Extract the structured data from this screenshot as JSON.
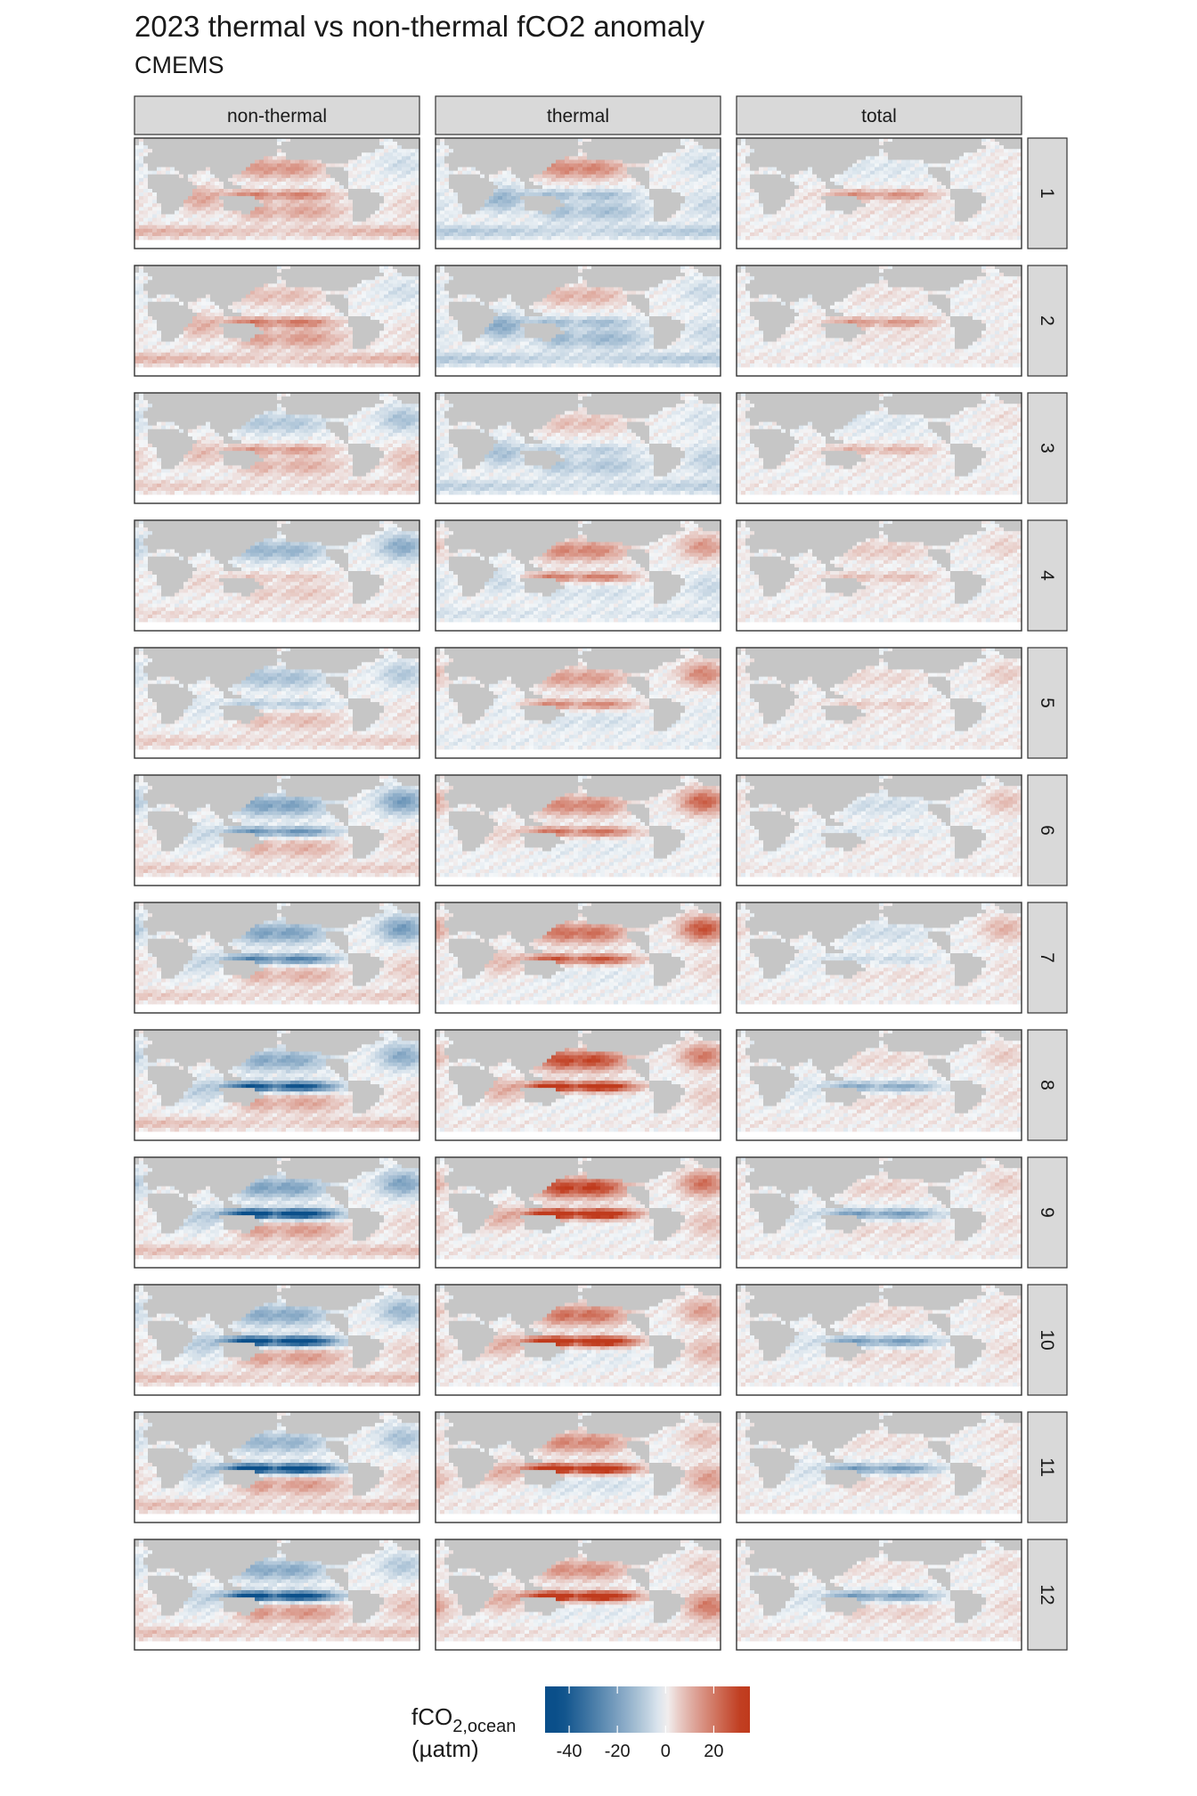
{
  "title": "2023 thermal vs non-thermal fCO2 anomaly",
  "subtitle": "CMEMS",
  "chart_data": {
    "type": "heatmap",
    "kind": "faceted global maps",
    "columns": [
      "non-thermal",
      "thermal",
      "total"
    ],
    "rows": [
      "1",
      "2",
      "3",
      "4",
      "5",
      "6",
      "7",
      "8",
      "9",
      "10",
      "11",
      "12"
    ],
    "legend": {
      "title_main": "fCO",
      "title_sub": "2,ocean",
      "title_unit": "(µatm)",
      "ticks": [
        {
          "value": -40,
          "label": "-40"
        },
        {
          "value": -20,
          "label": "-20"
        },
        {
          "value": 0,
          "label": "0"
        },
        {
          "value": 20,
          "label": "20"
        }
      ],
      "limits": [
        -50,
        35
      ],
      "colors": {
        "low": "#0a4f8a",
        "mid": "#f4f7f9",
        "high": "#c03a1c"
      }
    },
    "map_colors": {
      "land": "#c6c6c6",
      "ocean_default": "#f4f7f9"
    },
    "approx_anomalies": {
      "description_note": "",
      "non-thermal": {
        "eq_pacific": [
          18,
          20,
          14,
          6,
          -10,
          -25,
          -30,
          -45,
          -55,
          -55,
          -55,
          -52
        ],
        "n_pacific": [
          15,
          8,
          -10,
          -15,
          -12,
          -20,
          -20,
          -18,
          -20,
          -18,
          -15,
          -18
        ],
        "s_pacific": [
          12,
          14,
          10,
          6,
          8,
          10,
          10,
          12,
          14,
          14,
          14,
          15
        ],
        "n_atlantic": [
          -5,
          -5,
          -12,
          -18,
          -10,
          -22,
          -22,
          -18,
          -20,
          -15,
          -12,
          -10
        ],
        "s_atlantic": [
          4,
          3,
          8,
          2,
          3,
          5,
          6,
          4,
          4,
          5,
          6,
          8
        ],
        "indian": [
          12,
          10,
          8,
          4,
          -3,
          -5,
          -6,
          -8,
          -8,
          -8,
          -8,
          -6
        ],
        "s_ocean": [
          10,
          10,
          6,
          4,
          6,
          6,
          6,
          8,
          8,
          8,
          8,
          8
        ]
      },
      "thermal": {
        "eq_pacific": [
          -12,
          -12,
          -8,
          20,
          18,
          22,
          28,
          40,
          45,
          45,
          45,
          45
        ],
        "n_pacific": [
          18,
          10,
          8,
          18,
          14,
          18,
          22,
          30,
          32,
          22,
          18,
          16
        ],
        "s_pacific": [
          -12,
          -14,
          -10,
          -4,
          -4,
          -2,
          -2,
          0,
          0,
          -2,
          -4,
          -2
        ],
        "n_atlantic": [
          -6,
          -6,
          -4,
          15,
          18,
          25,
          28,
          20,
          22,
          14,
          8,
          6
        ],
        "s_atlantic": [
          -6,
          -6,
          -8,
          -6,
          -2,
          0,
          4,
          6,
          8,
          10,
          14,
          20
        ],
        "indian": [
          -15,
          -18,
          -12,
          -6,
          -2,
          4,
          8,
          10,
          10,
          10,
          10,
          10
        ],
        "s_ocean": [
          -10,
          -10,
          -8,
          -4,
          -2,
          0,
          0,
          2,
          2,
          2,
          2,
          4
        ]
      },
      "total": {
        "eq_pacific": [
          16,
          15,
          10,
          8,
          6,
          -4,
          -6,
          -18,
          -22,
          -22,
          -22,
          -22
        ],
        "n_pacific": [
          -3,
          3,
          -3,
          6,
          4,
          -5,
          -5,
          4,
          5,
          4,
          3,
          3
        ],
        "s_pacific": [
          3,
          3,
          2,
          2,
          2,
          2,
          3,
          4,
          4,
          4,
          4,
          5
        ],
        "n_atlantic": [
          2,
          2,
          3,
          5,
          6,
          8,
          10,
          6,
          6,
          4,
          3,
          4
        ],
        "s_atlantic": [
          1,
          1,
          1,
          1,
          1,
          2,
          3,
          3,
          3,
          4,
          4,
          4
        ],
        "indian": [
          2,
          2,
          2,
          2,
          1,
          -1,
          -2,
          -3,
          -3,
          -3,
          -3,
          -3
        ],
        "s_ocean": [
          2,
          2,
          2,
          2,
          2,
          2,
          2,
          2,
          2,
          2,
          2,
          3
        ]
      }
    }
  }
}
